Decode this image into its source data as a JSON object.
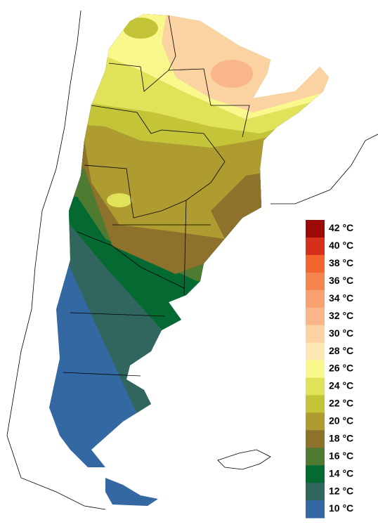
{
  "legend": {
    "items": [
      {
        "label": "42 °C",
        "color": "#9b0a06"
      },
      {
        "label": "40 °C",
        "color": "#d4301c"
      },
      {
        "label": "38 °C",
        "color": "#f2662e"
      },
      {
        "label": "36 °C",
        "color": "#f5844e"
      },
      {
        "label": "34 °C",
        "color": "#f8a070"
      },
      {
        "label": "32 °C",
        "color": "#f9b688"
      },
      {
        "label": "30 °C",
        "color": "#fbd2a2"
      },
      {
        "label": "28 °C",
        "color": "#fbe8b2"
      },
      {
        "label": "26 °C",
        "color": "#f8f88c"
      },
      {
        "label": "24 °C",
        "color": "#e0e25a"
      },
      {
        "label": "22 °C",
        "color": "#c4c438"
      },
      {
        "label": "20 °C",
        "color": "#ae9c30"
      },
      {
        "label": "18 °C",
        "color": "#8e722c"
      },
      {
        "label": "16 °C",
        "color": "#4e7a32"
      },
      {
        "label": "14 °C",
        "color": "#046a32"
      },
      {
        "label": "12 °C",
        "color": "#30665e"
      },
      {
        "label": "10 °C",
        "color": "#3468a2"
      }
    ]
  }
}
